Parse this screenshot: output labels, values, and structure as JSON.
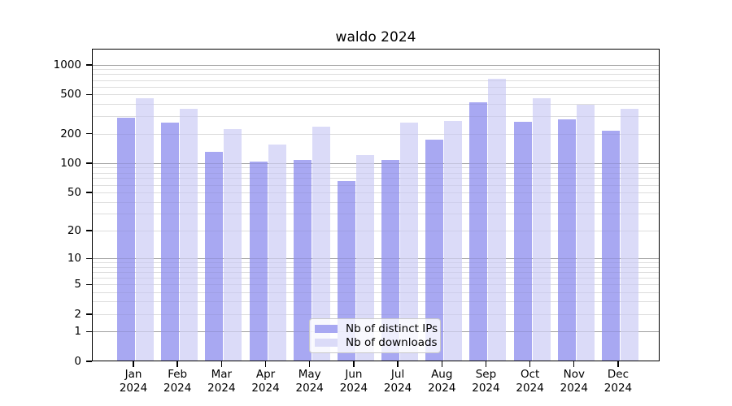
{
  "chart_data": {
    "type": "bar",
    "title": "waldo 2024",
    "categories": [
      "Jan",
      "Feb",
      "Mar",
      "Apr",
      "May",
      "Jun",
      "Jul",
      "Aug",
      "Sep",
      "Oct",
      "Nov",
      "Dec"
    ],
    "year_label": "2024",
    "series": [
      {
        "name": "Nb of distinct IPs",
        "color": "#a8a8f2",
        "values": [
          290,
          258,
          131,
          104,
          108,
          66,
          108,
          172,
          417,
          262,
          277,
          214
        ]
      },
      {
        "name": "Nb of downloads",
        "color": "#dbdbf8",
        "values": [
          457,
          357,
          222,
          156,
          235,
          121,
          259,
          268,
          720,
          457,
          395,
          357
        ]
      }
    ],
    "yticks": [
      0,
      1,
      2,
      5,
      10,
      20,
      50,
      100,
      200,
      500,
      1000
    ],
    "scale": "log1p",
    "ylim": [
      0,
      1360
    ],
    "grid": true,
    "legend_position": "inside-bottom-center",
    "colors": {
      "major_gridline": "#b4b4b4",
      "minor_gridline": "#e9e9e9",
      "axis": "#000000"
    }
  }
}
